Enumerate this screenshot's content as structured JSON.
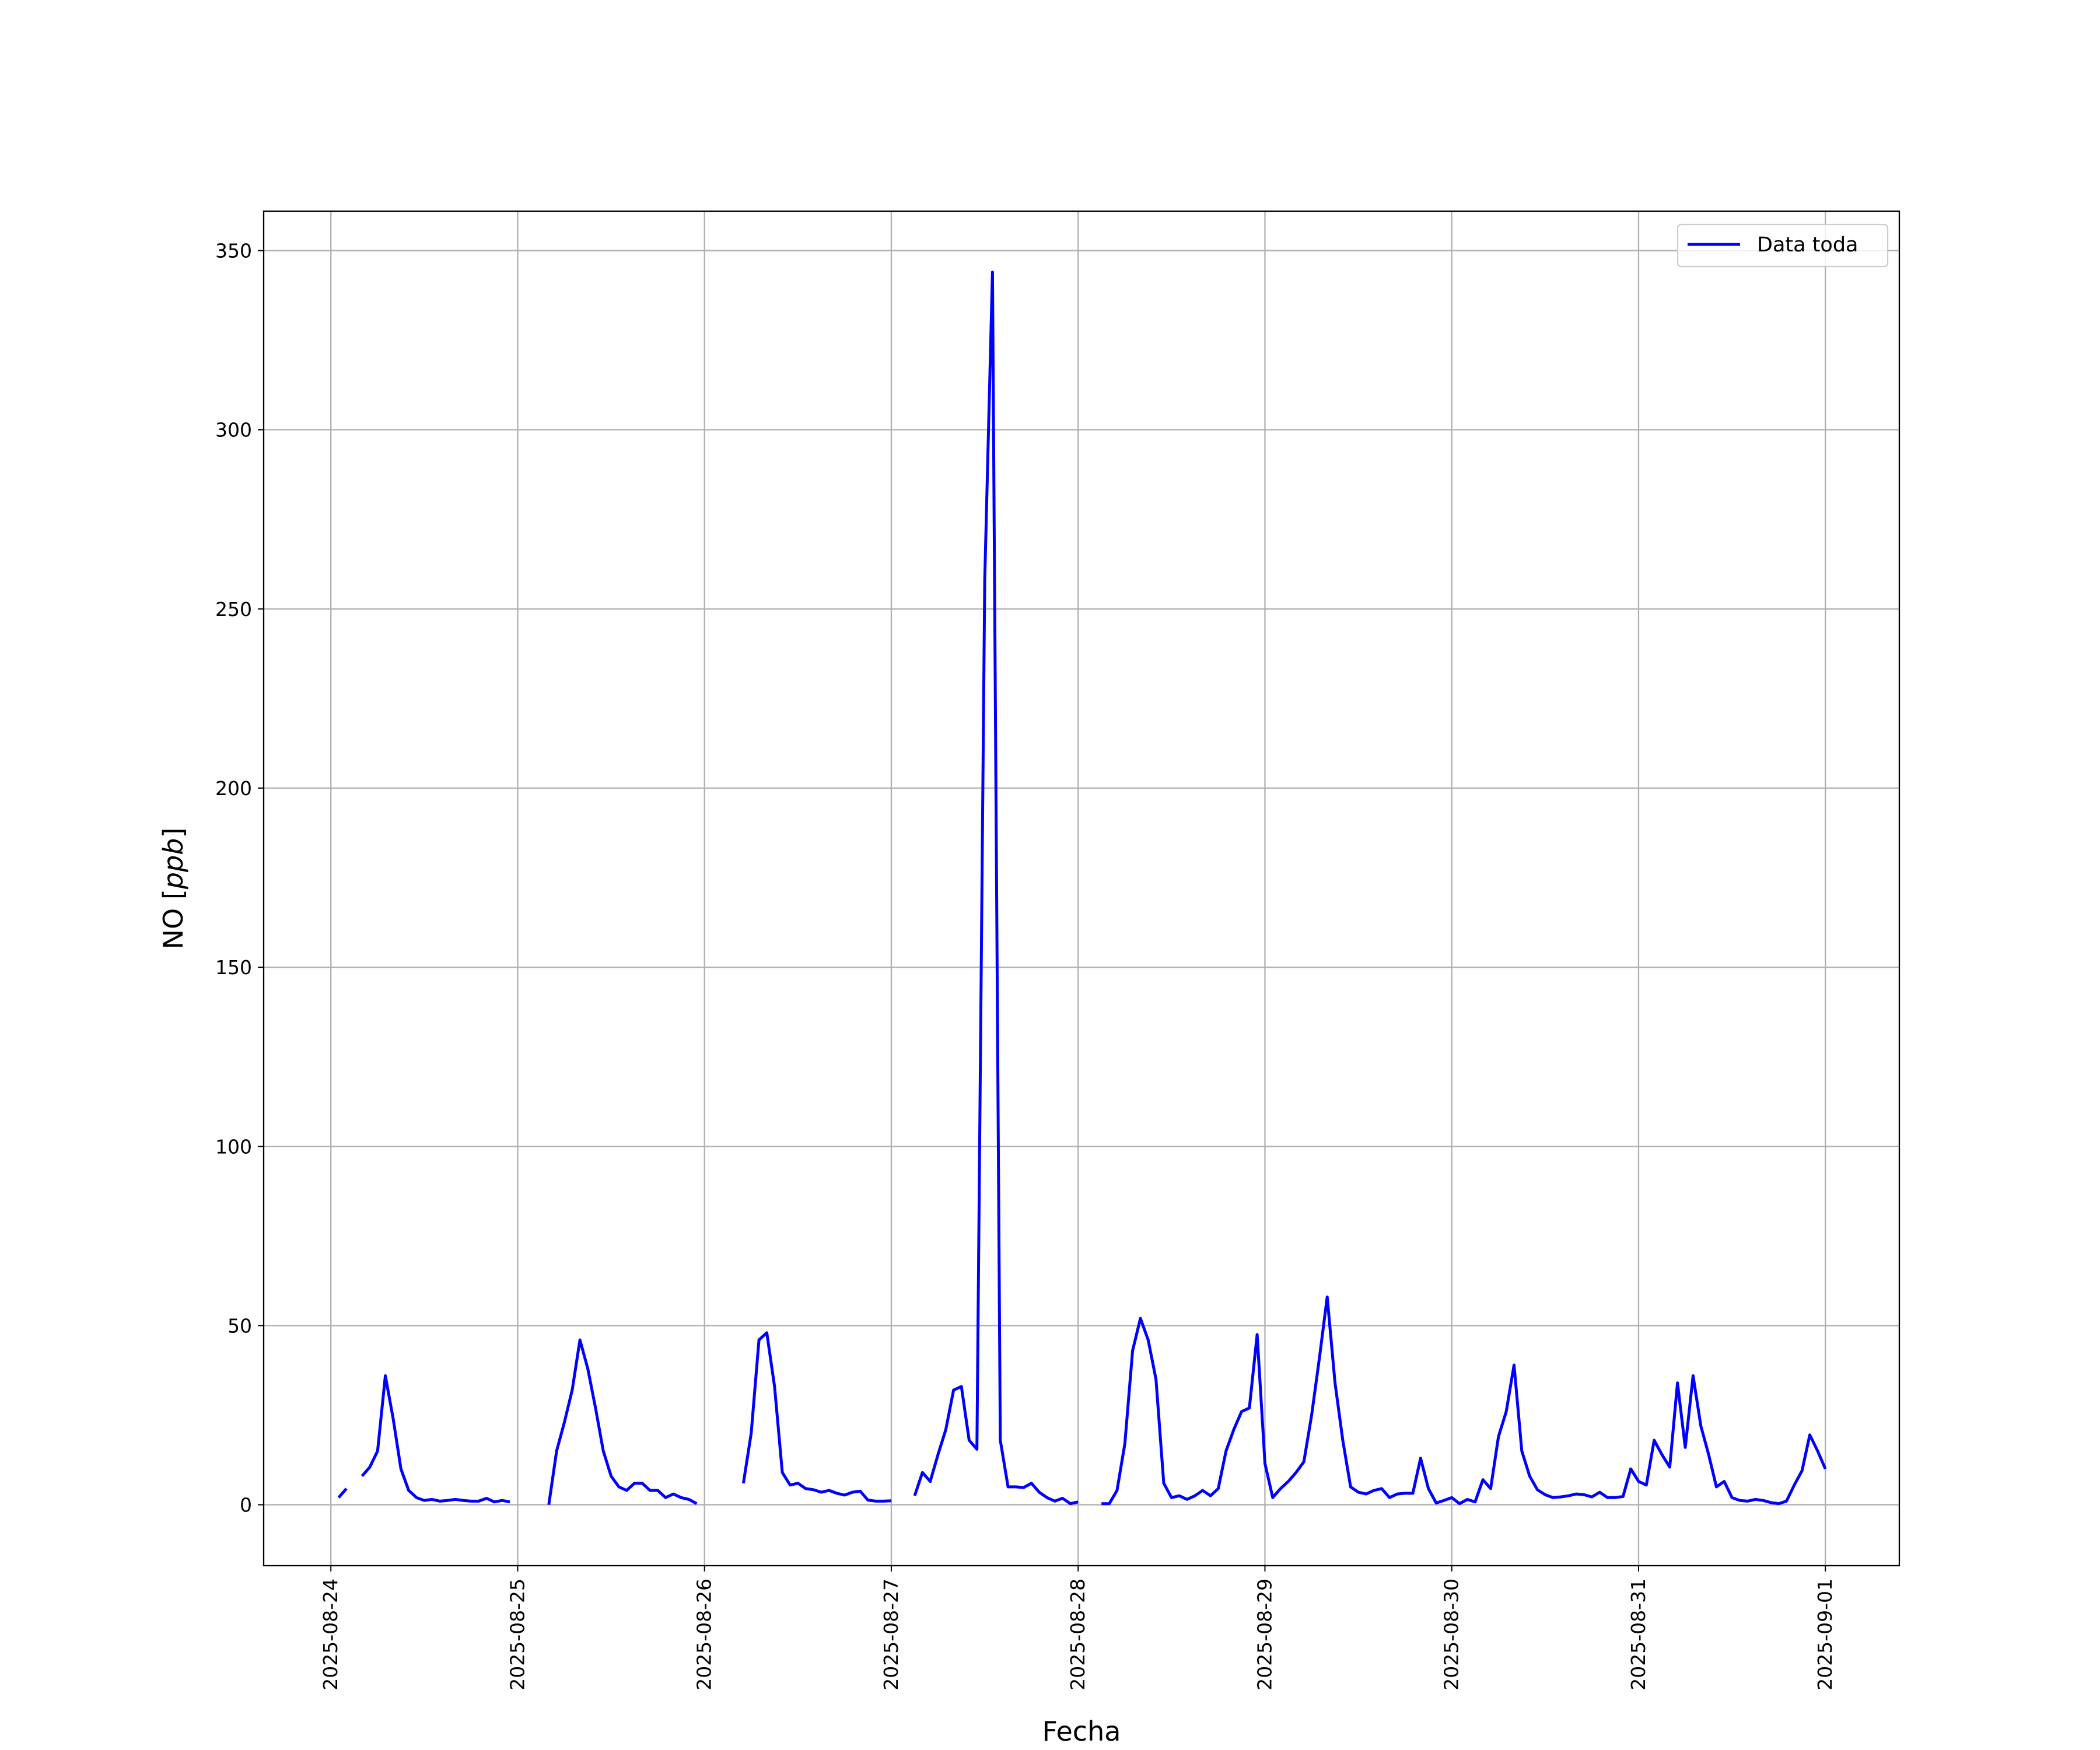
{
  "chart_data": {
    "type": "line",
    "title": "",
    "xlabel": "Fecha",
    "ylabel": "NO [ppb]",
    "ylim": [
      -17,
      361
    ],
    "xlim": [
      "2025-08-23 15:22",
      "2025-09-01 09:30"
    ],
    "yticks": [
      0,
      50,
      100,
      150,
      200,
      250,
      300,
      350
    ],
    "xticks": [
      "2025-08-24",
      "2025-08-25",
      "2025-08-26",
      "2025-08-27",
      "2025-08-28",
      "2025-08-29",
      "2025-08-30",
      "2025-08-31",
      "2025-09-01"
    ],
    "grid": true,
    "legend_placement": "top-right",
    "colors": {
      "series": "#0000ff",
      "grid": "#b0b0b0"
    },
    "series": [
      {
        "name": "Data toda",
        "interval": "hourly",
        "days": [
          {
            "date": "2025-08-24",
            "values": [
              null,
              2,
              4.5,
              null,
              8,
              10.5,
              15,
              36,
              24,
              10,
              4,
              2,
              1.2,
              1.5,
              1,
              1.2,
              1.5,
              1.2,
              1,
              1,
              1.8,
              0.8,
              1.2,
              0.8
            ]
          },
          {
            "date": "2025-08-25",
            "values": [
              null,
              null,
              null,
              null,
              0,
              15,
              23,
              32,
              46,
              38,
              27,
              15,
              8,
              5,
              4,
              6,
              6,
              4,
              4,
              2,
              3,
              2,
              1.5,
              0.3
            ]
          },
          {
            "date": "2025-08-26",
            "values": [
              null,
              null,
              null,
              null,
              null,
              6,
              20,
              46,
              48,
              33,
              9,
              5.5,
              6,
              4.5,
              4.2,
              3.5,
              4,
              3.2,
              2.7,
              3.5,
              3.8,
              1.3,
              1,
              1
            ]
          },
          {
            "date": "2025-08-27",
            "values": [
              1.1,
              null,
              null,
              2.5,
              9,
              6.5,
              14,
              21,
              32,
              33,
              18,
              15.5,
              258,
              344,
              18,
              5,
              5,
              4.8,
              6,
              3.5,
              2,
              1,
              1.8,
              0.3
            ]
          },
          {
            "date": "2025-08-28",
            "values": [
              0.8,
              null,
              null,
              0.3,
              0.3,
              4,
              17,
              43,
              52,
              46,
              35,
              6,
              2,
              2.5,
              1.5,
              2.5,
              4,
              2.5,
              4.5,
              15,
              21,
              26,
              27,
              47.5
            ]
          },
          {
            "date": "2025-08-29",
            "values": [
              11.5,
              2,
              4.5,
              6.5,
              9,
              12,
              25,
              41,
              58,
              34,
              18,
              5,
              3.5,
              3,
              4,
              4.5,
              2,
              3,
              3.2,
              3.2,
              13,
              4.5,
              0.5,
              1.2
            ]
          },
          {
            "date": "2025-08-30",
            "values": [
              2,
              0.3,
              1.5,
              0.8,
              7,
              4.5,
              19,
              26,
              39,
              15,
              8,
              4.2,
              2.8,
              2,
              2.2,
              2.5,
              3,
              2.8,
              2.2,
              3.5,
              2,
              2,
              2.3,
              10
            ]
          },
          {
            "date": "2025-08-31",
            "values": [
              6.5,
              5.5,
              18,
              14,
              10.5,
              34,
              16,
              36,
              22,
              14,
              5,
              6.5,
              2,
              1.2,
              1,
              1.5,
              1.2,
              0.6,
              0.3,
              1,
              5.5,
              9.5,
              19.5,
              15
            ]
          },
          {
            "date": "2025-09-01",
            "values": [
              10
            ]
          }
        ]
      }
    ]
  }
}
